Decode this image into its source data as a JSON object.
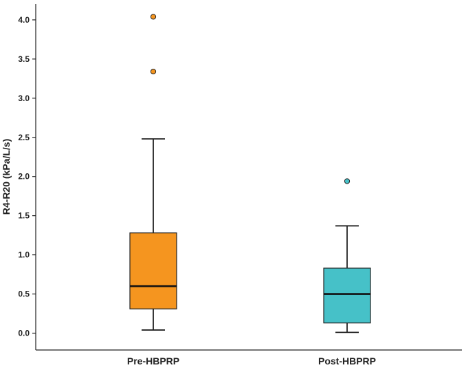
{
  "chart_data": {
    "type": "box",
    "ylabel": "R4-R20 (kPa/L/s)",
    "xlabel": "",
    "ylim": [
      -0.2,
      4.15
    ],
    "yticks": [
      0.0,
      0.5,
      1.0,
      1.5,
      2.0,
      2.5,
      3.0,
      3.5,
      4.0
    ],
    "ytick_labels": [
      "0.0",
      "0.5",
      "1.0",
      "1.5",
      "2.0",
      "2.5",
      "3.0",
      "3.5",
      "4.0"
    ],
    "grid": false,
    "categories": [
      "Pre-HBPRP",
      "Post-HBPRP"
    ],
    "boxes": [
      {
        "category": "Pre-HBPRP",
        "color": "#f5951f",
        "whisker_low": 0.04,
        "q1": 0.31,
        "median": 0.6,
        "q3": 1.28,
        "whisker_high": 2.48,
        "outliers": [
          3.34,
          4.04
        ]
      },
      {
        "category": "Post-HBPRP",
        "color": "#46c1c8",
        "whisker_low": 0.01,
        "q1": 0.13,
        "median": 0.5,
        "q3": 0.83,
        "whisker_high": 1.37,
        "outliers": [
          1.94
        ]
      }
    ]
  }
}
